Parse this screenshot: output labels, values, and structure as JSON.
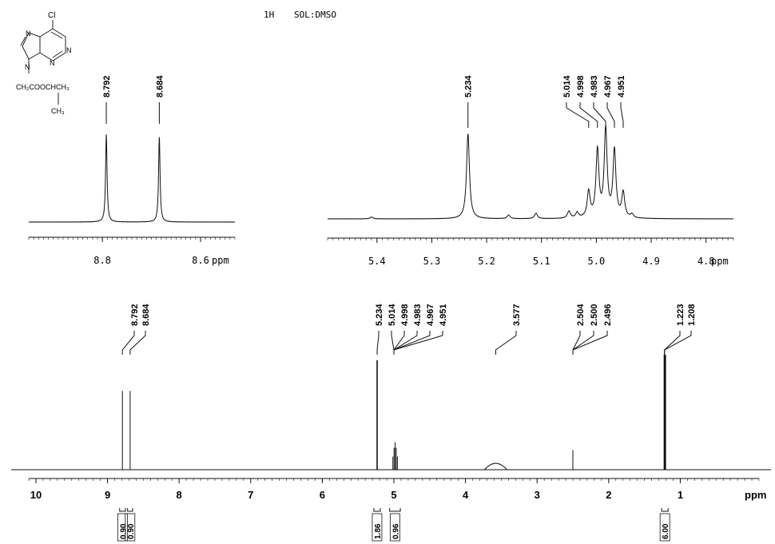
{
  "header": {
    "nucleus": "1H",
    "solvent": "SOL:DMSO"
  },
  "structure": {
    "substituent": "Cl",
    "ring_n_labels": [
      "N",
      "N",
      "N",
      "N"
    ],
    "side_chain": "CH₂COOCHCH₃",
    "methyl": "CH₃"
  },
  "chart_data": [
    {
      "type": "line",
      "name_hint": "inset-aromatic",
      "xlabel": "ppm",
      "x_reversed": true,
      "xlim": [
        8.95,
        8.53
      ],
      "x_ticks": [
        "8.8",
        "8.6"
      ],
      "peaks": [
        {
          "ppm": 8.792,
          "label": "8.792",
          "height": 1.0
        },
        {
          "ppm": 8.684,
          "label": "8.684",
          "height": 0.97
        }
      ]
    },
    {
      "type": "line",
      "name_hint": "inset-5ppm",
      "xlabel": "ppm",
      "x_reversed": true,
      "xlim": [
        5.49,
        4.75
      ],
      "x_ticks": [
        "5.4",
        "5.3",
        "5.2",
        "5.1",
        "5.0",
        "4.9",
        "4.8"
      ],
      "peaks": [
        {
          "ppm": 5.234,
          "label": "5.234",
          "height": 0.95
        },
        {
          "ppm": 5.014,
          "label": "5.014",
          "height": 0.29
        },
        {
          "ppm": 4.998,
          "label": "4.998",
          "height": 0.75
        },
        {
          "ppm": 4.983,
          "label": "4.983",
          "height": 0.98
        },
        {
          "ppm": 4.967,
          "label": "4.967",
          "height": 0.75
        },
        {
          "ppm": 4.951,
          "label": "4.951",
          "height": 0.28
        }
      ],
      "minor_peaks": [
        {
          "ppm": 5.41,
          "height": 0.02
        },
        {
          "ppm": 5.16,
          "height": 0.04
        },
        {
          "ppm": 5.11,
          "height": 0.06
        },
        {
          "ppm": 5.05,
          "height": 0.08
        },
        {
          "ppm": 5.035,
          "height": 0.06
        },
        {
          "ppm": 4.935,
          "height": 0.04
        }
      ]
    },
    {
      "type": "line",
      "name_hint": "full-spectrum",
      "xlabel": "ppm",
      "x_reversed": true,
      "xlim": [
        10.1,
        -0.1
      ],
      "x_ticks": [
        "10",
        "9",
        "8",
        "7",
        "6",
        "5",
        "4",
        "3",
        "2",
        "1"
      ],
      "peak_label_groups": [
        [
          "8.792",
          "8.684"
        ],
        [
          "5.234",
          "5.014",
          "4.998",
          "4.983",
          "4.967",
          "4.951"
        ],
        [
          "3.577"
        ],
        [
          "2.504",
          "2.500",
          "2.496"
        ],
        [
          "1.223",
          "1.208"
        ]
      ],
      "peaks": [
        {
          "ppm": 8.792,
          "height": 0.72
        },
        {
          "ppm": 8.684,
          "height": 0.72
        },
        {
          "ppm": 5.234,
          "height": 1.0
        },
        {
          "ppm": 5.014,
          "height": 0.12
        },
        {
          "ppm": 4.998,
          "height": 0.2
        },
        {
          "ppm": 4.983,
          "height": 0.25
        },
        {
          "ppm": 4.967,
          "height": 0.2
        },
        {
          "ppm": 4.951,
          "height": 0.12
        },
        {
          "ppm": 3.577,
          "height": 0.05
        },
        {
          "ppm": 2.5,
          "height": 0.18
        },
        {
          "ppm": 1.223,
          "height": 1.05
        },
        {
          "ppm": 1.208,
          "height": 1.05
        }
      ],
      "integrals": [
        {
          "from": 8.83,
          "to": 8.75,
          "value": "0.90"
        },
        {
          "from": 8.72,
          "to": 8.65,
          "value": "0.90"
        },
        {
          "from": 5.28,
          "to": 5.19,
          "value": "1.86"
        },
        {
          "from": 5.06,
          "to": 4.91,
          "value": "0.96"
        },
        {
          "from": 1.26,
          "to": 1.17,
          "value": "6.00"
        }
      ]
    }
  ]
}
